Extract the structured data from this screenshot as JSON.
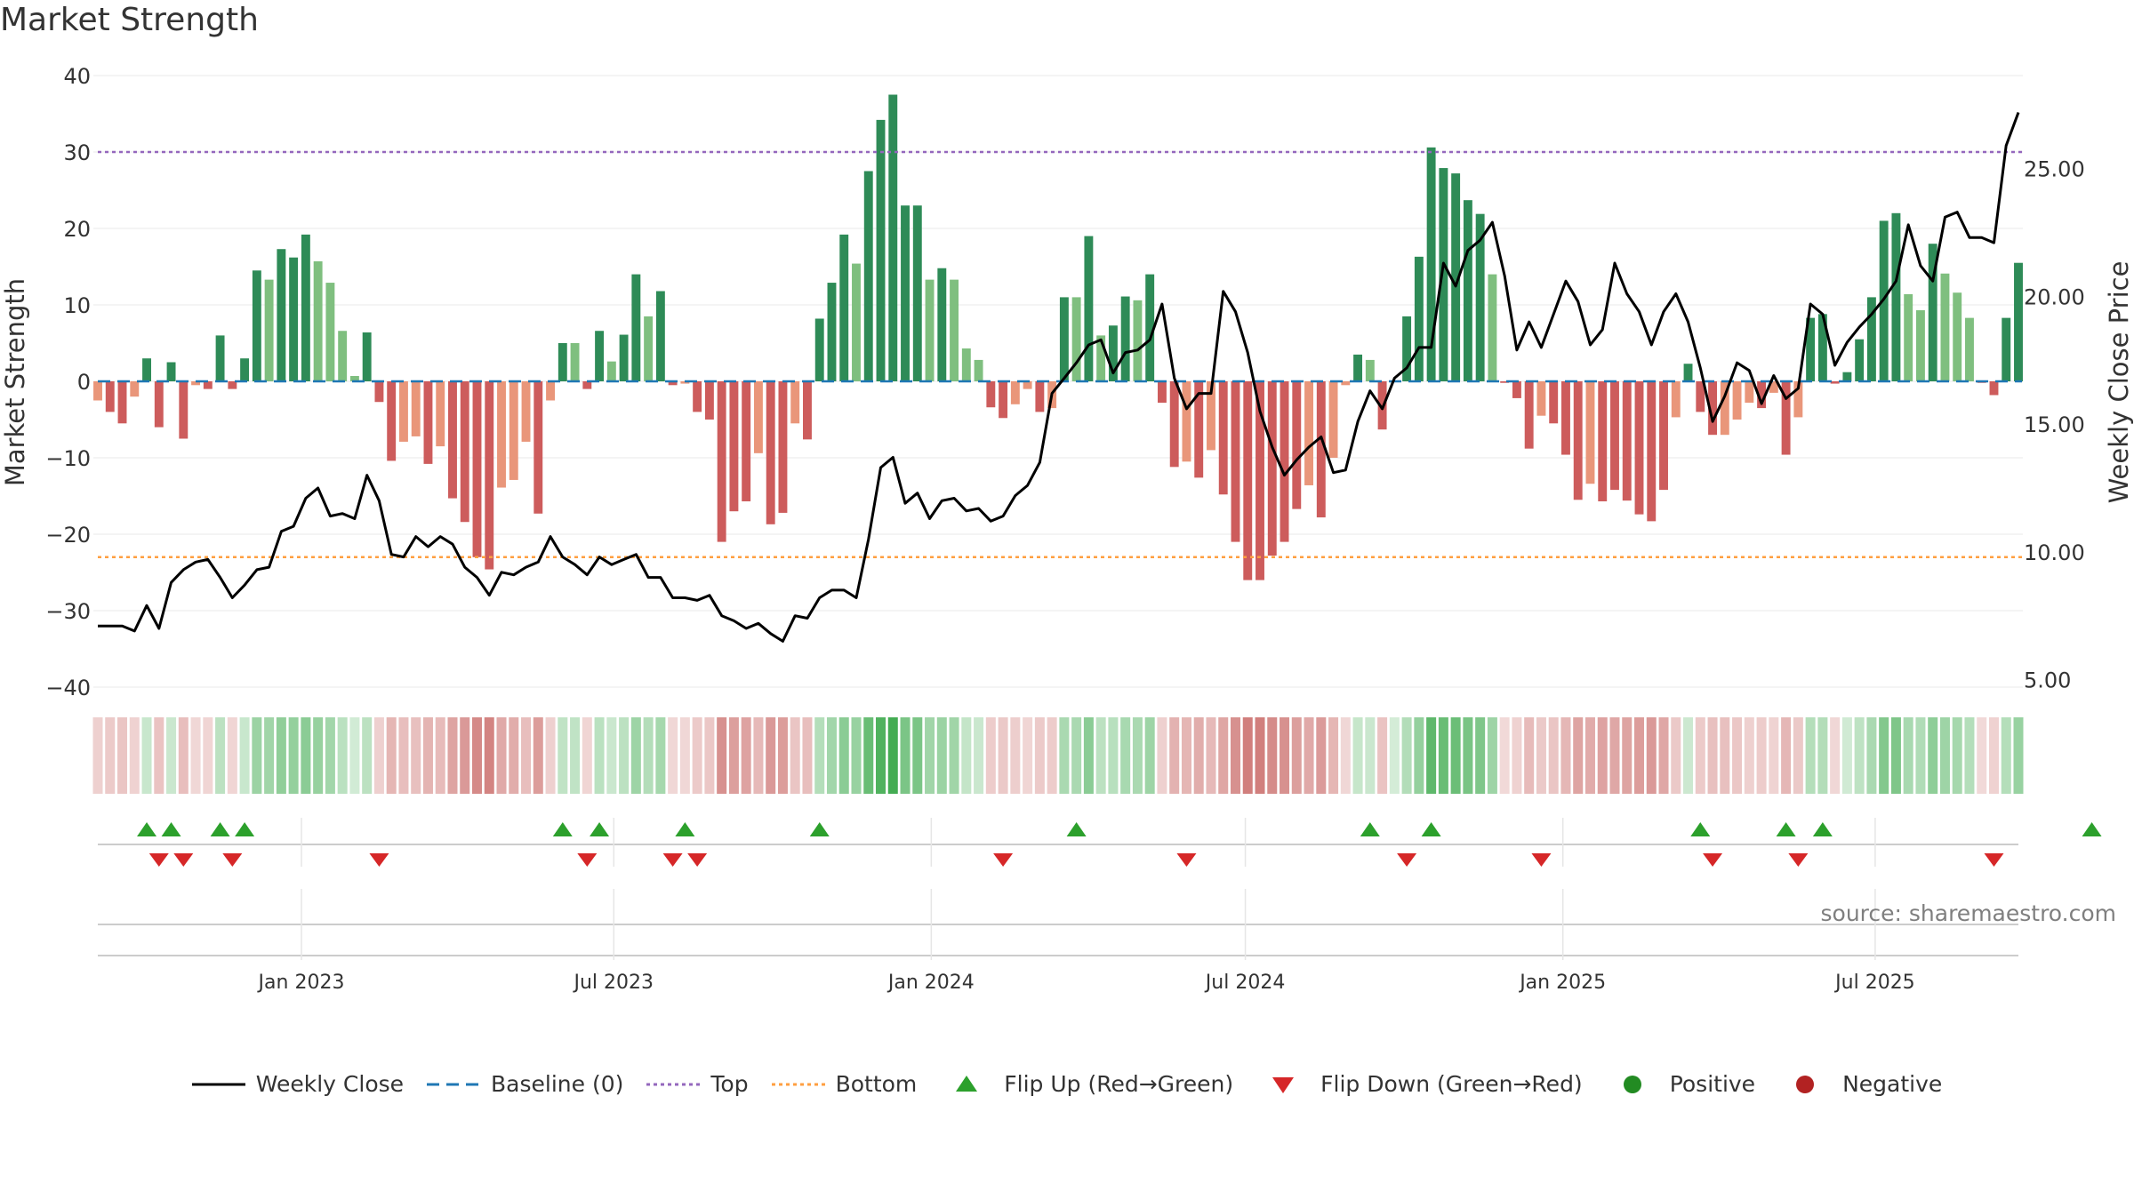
{
  "colors": {
    "strong_green": "#2e8b57",
    "light_green": "#7fbf7f",
    "strong_red": "#cd5c5c",
    "light_red": "#e9967a",
    "baseline": "#1f77b4",
    "top_line": "#9467bd",
    "bottom_line": "#ff9f40",
    "close_line": "#000000",
    "flip_up": "#2ca02c",
    "flip_down": "#d62728",
    "positive": "#228b22",
    "negative": "#b22222"
  },
  "chart_data": {
    "type": "bar+line",
    "title": "Market Strength",
    "source": "source: sharemaestro.com",
    "left_axis": {
      "label": "Market Strength",
      "range": [
        -40,
        40
      ],
      "ticks": [
        "40",
        "30",
        "20",
        "10",
        "0",
        "−10",
        "−20",
        "−30",
        "−40"
      ],
      "tick_values": [
        40,
        30,
        20,
        10,
        0,
        -10,
        -20,
        -30,
        -40
      ]
    },
    "right_axis": {
      "label": "Weekly Close Price",
      "range": [
        3.0,
        30.0
      ],
      "ticks": [
        "25.00",
        "20.00",
        "15.00",
        "10.00",
        "5.00"
      ],
      "tick_values": [
        25,
        20,
        15,
        10,
        5
      ]
    },
    "x_axis": {
      "start": "2022-09-05",
      "end": "2025-09-22",
      "ticks": [
        {
          "label": "Jan 2023",
          "date": "2023-01-01"
        },
        {
          "label": "Jul 2023",
          "date": "2023-07-01"
        },
        {
          "label": "Jan 2024",
          "date": "2024-01-01"
        },
        {
          "label": "Jul 2024",
          "date": "2024-07-01"
        },
        {
          "label": "Jan 2025",
          "date": "2025-01-01"
        },
        {
          "label": "Jul 2025",
          "date": "2025-07-01"
        }
      ]
    },
    "top_threshold": 30,
    "bottom_threshold": -23,
    "baseline": 0,
    "strength": [
      -2.5,
      -4,
      -5.5,
      -2,
      3,
      -6,
      2.5,
      -7.5,
      -0.5,
      -1,
      6,
      -1,
      3,
      14.5,
      13.3,
      17.3,
      16.2,
      19.2,
      15.7,
      12.9,
      6.6,
      0.7,
      6.4,
      -2.7,
      -10.4,
      -7.9,
      -7.2,
      -10.8,
      -8.5,
      -15.3,
      -18.4,
      -23,
      -24.6,
      -13.9,
      -12.9,
      -7.9,
      -17.3,
      -2.5,
      5,
      5,
      -1,
      6.6,
      2.6,
      6.1,
      14,
      8.5,
      11.8,
      -0.5,
      -0.3,
      -4,
      -5,
      -21,
      -17,
      -15.7,
      -9.4,
      -18.7,
      -17.2,
      -5.5,
      -7.6,
      8.2,
      12.9,
      19.2,
      15.4,
      27.5,
      34.2,
      37.5,
      23,
      23,
      13.3,
      14.8,
      13.3,
      4.3,
      2.8,
      -3.4,
      -4.8,
      -3,
      -1,
      -4,
      -3.5,
      11,
      11,
      19,
      6,
      7.3,
      11.1,
      10.6,
      14,
      -2.8,
      -11.2,
      -10.5,
      -12.6,
      -9,
      -14.8,
      -21,
      -26,
      -26,
      -22.8,
      -21,
      -16.7,
      -13.6,
      -17.8,
      -10,
      -0.5,
      3.5,
      2.8,
      -6.3,
      0.1,
      8.5,
      16.3,
      30.6,
      27.9,
      27.2,
      23.7,
      21.9,
      14,
      -0.2,
      -2.2,
      -8.8,
      -4.5,
      -5.5,
      -9.6,
      -15.5,
      -13.4,
      -15.7,
      -14.2,
      -15.6,
      -17.4,
      -18.3,
      -14.2,
      -4.7,
      2.3,
      -4,
      -7,
      -7,
      -5,
      -2.8,
      -3.5,
      -1.5,
      -9.6,
      -4.7,
      8.3,
      8.8,
      -0.3,
      1.2,
      5.5,
      11,
      21,
      22,
      11.4,
      9.3,
      18,
      14.1,
      11.6,
      8.3,
      -0.2,
      -1.8,
      8.3,
      15.5
    ],
    "close": [
      7.1,
      7.1,
      7.1,
      6.9,
      7.9,
      7.0,
      8.8,
      9.3,
      9.6,
      9.7,
      9.0,
      8.2,
      8.7,
      9.3,
      9.4,
      10.8,
      11.0,
      12.1,
      12.5,
      11.4,
      11.5,
      11.3,
      13.0,
      12.0,
      9.9,
      9.8,
      10.6,
      10.2,
      10.6,
      10.3,
      9.4,
      9.0,
      8.3,
      9.2,
      9.1,
      9.4,
      9.6,
      10.6,
      9.8,
      9.5,
      9.1,
      9.8,
      9.5,
      9.7,
      9.9,
      9.0,
      9.0,
      8.2,
      8.2,
      8.1,
      8.3,
      7.5,
      7.3,
      7.0,
      7.2,
      6.8,
      6.5,
      7.5,
      7.4,
      8.2,
      8.5,
      8.5,
      8.2,
      10.5,
      13.3,
      13.7,
      11.9,
      12.3,
      11.3,
      12.0,
      12.1,
      11.6,
      11.7,
      11.2,
      11.4,
      12.2,
      12.6,
      13.5,
      16.2,
      16.8,
      17.4,
      18.1,
      18.3,
      17.0,
      17.8,
      17.9,
      18.3,
      19.7,
      16.8,
      15.6,
      16.2,
      16.2,
      20.2,
      19.4,
      17.8,
      15.5,
      14.1,
      13.0,
      13.6,
      14.1,
      14.5,
      13.1,
      13.2,
      15.1,
      16.3,
      15.6,
      16.8,
      17.2,
      18.0,
      18.0,
      21.3,
      20.4,
      21.8,
      22.2,
      22.9,
      20.8,
      17.9,
      19.0,
      18.0,
      19.3,
      20.6,
      19.8,
      18.1,
      18.7,
      21.3,
      20.1,
      19.4,
      18.1,
      19.4,
      20.1,
      19.0,
      17.2,
      15.1,
      16.1,
      17.4,
      17.1,
      15.8,
      16.9,
      16.0,
      16.4,
      19.7,
      19.3,
      17.3,
      18.2,
      18.8,
      19.3,
      19.9,
      20.6,
      22.8,
      21.2,
      20.6,
      23.1,
      23.3,
      22.3,
      22.3,
      22.1,
      25.9,
      27.2
    ],
    "flip_up_weeks": [
      4,
      6,
      10,
      12,
      38,
      41,
      48,
      59,
      80,
      104,
      109,
      131,
      138,
      141,
      163
    ],
    "flip_down_weeks": [
      5,
      7,
      11,
      23,
      40,
      47,
      49,
      74,
      89,
      107,
      118,
      132,
      139,
      155
    ],
    "flip_up_label_note": "",
    "legend": [
      "Weekly Close",
      "Baseline (0)",
      "Top",
      "Bottom",
      "Flip Up (Red→Green)",
      "Flip Down (Green→Red)",
      "Positive",
      "Negative"
    ]
  },
  "legend": {
    "close": "Weekly Close",
    "baseline": "Baseline (0)",
    "top": "Top",
    "bottom": "Bottom",
    "flip_up": "Flip Up (Red→Green)",
    "flip_down": "Flip Down (Green→Red)",
    "positive": "Positive",
    "negative": "Negative"
  }
}
